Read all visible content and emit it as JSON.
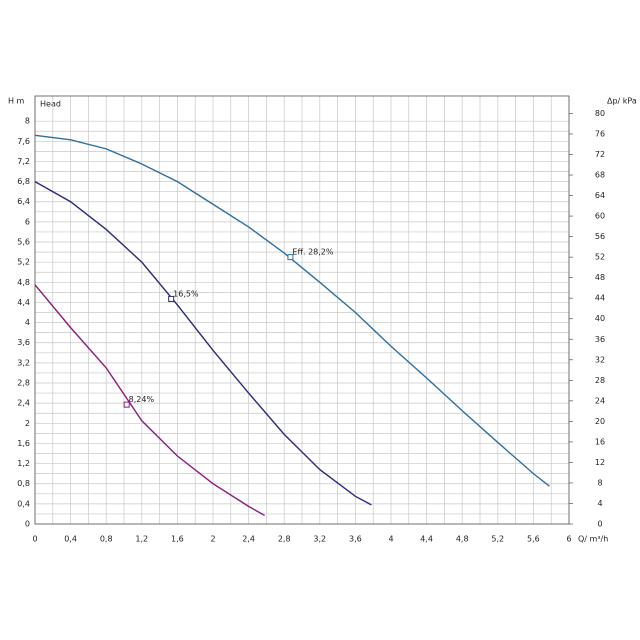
{
  "chart_data": {
    "type": "line",
    "y_label": "H m",
    "y_sublabel": "Head",
    "y2_label": "Δp/ kPa",
    "x_label": "Q/ m³/h",
    "xlim": [
      0,
      6
    ],
    "ylim": [
      0,
      8.5
    ],
    "y2lim": [
      0,
      83.4
    ],
    "grid": true,
    "minor_grid": true,
    "xticks": [
      0,
      {
        "value": 0.4,
        "label": "0,4"
      },
      {
        "value": 0.8,
        "label": "0,8"
      },
      {
        "value": 1.2,
        "label": "1,2"
      },
      {
        "value": 1.6,
        "label": "1,6"
      },
      2,
      {
        "value": 2.4,
        "label": "2,4"
      },
      {
        "value": 2.8,
        "label": "2,8"
      },
      {
        "value": 3.2,
        "label": "3,2"
      },
      {
        "value": 3.6,
        "label": "3,6"
      },
      4,
      {
        "value": 4.4,
        "label": "4,4"
      },
      {
        "value": 4.8,
        "label": "4,8"
      },
      {
        "value": 5.2,
        "label": "5,2"
      },
      {
        "value": 5.6,
        "label": "5,6"
      },
      6
    ],
    "yticks": [
      0,
      {
        "value": 0.4,
        "label": "0,4"
      },
      {
        "value": 0.8,
        "label": "0,8"
      },
      {
        "value": 1.2,
        "label": "1,2"
      },
      {
        "value": 1.6,
        "label": "1,6"
      },
      2,
      {
        "value": 2.4,
        "label": "2,4"
      },
      {
        "value": 2.8,
        "label": "2,8"
      },
      {
        "value": 3.2,
        "label": "3,2"
      },
      {
        "value": 3.6,
        "label": "3,6"
      },
      4,
      {
        "value": 4.4,
        "label": "4,4"
      },
      {
        "value": 4.8,
        "label": "4,8"
      },
      {
        "value": 5.2,
        "label": "5,2"
      },
      {
        "value": 5.6,
        "label": "5,6"
      },
      6,
      {
        "value": 6.4,
        "label": "6,4"
      },
      {
        "value": 6.8,
        "label": "6,8"
      },
      {
        "value": 7.2,
        "label": "7,2"
      },
      {
        "value": 7.6,
        "label": "7,6"
      },
      8
    ],
    "y2ticks": [
      0,
      4,
      8,
      12,
      16,
      20,
      24,
      28,
      32,
      36,
      40,
      44,
      48,
      52,
      56,
      60,
      64,
      68,
      72,
      76,
      80
    ],
    "series": [
      {
        "color": "#2f6f9f",
        "x": [
          0,
          0.4,
          0.8,
          1.2,
          1.6,
          2.0,
          2.4,
          2.8,
          3.2,
          3.6,
          4.0,
          4.4,
          4.8,
          5.2,
          5.6,
          5.78
        ],
        "values": [
          7.72,
          7.63,
          7.45,
          7.15,
          6.8,
          6.35,
          5.9,
          5.38,
          4.8,
          4.2,
          3.53,
          2.9,
          2.25,
          1.62,
          1.0,
          0.75
        ]
      },
      {
        "color": "#2b2a7c",
        "x": [
          0,
          0.4,
          0.8,
          1.2,
          1.6,
          2.0,
          2.4,
          2.8,
          3.2,
          3.6,
          3.78
        ],
        "values": [
          6.8,
          6.4,
          5.85,
          5.2,
          4.35,
          3.45,
          2.6,
          1.78,
          1.08,
          0.55,
          0.38
        ]
      },
      {
        "color": "#8a1b80",
        "x": [
          0,
          0.4,
          0.8,
          1.2,
          1.6,
          2.0,
          2.4,
          2.58
        ],
        "values": [
          4.75,
          3.9,
          3.1,
          2.05,
          1.35,
          0.8,
          0.35,
          0.17
        ]
      }
    ],
    "annotations": [
      {
        "text": "Eff. 28,2%",
        "x": 2.87,
        "y": 5.3,
        "color": "#2f6f9f"
      },
      {
        "text": "16,5%",
        "x": 1.53,
        "y": 4.47,
        "color": "#2b2a7c"
      },
      {
        "text": "8,24%",
        "x": 1.03,
        "y": 2.37,
        "color": "#8a1b80"
      }
    ]
  }
}
